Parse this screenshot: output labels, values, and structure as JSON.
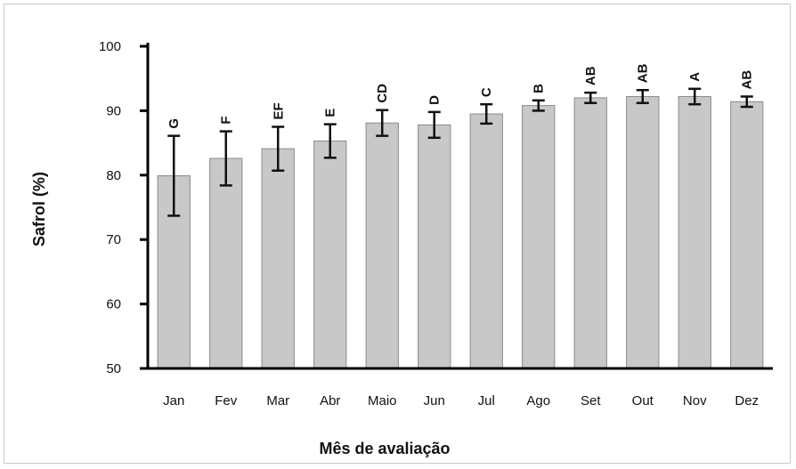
{
  "chart_data": {
    "type": "bar",
    "title": "",
    "xlabel": "Mês de avaliação",
    "ylabel": "Safrol (%)",
    "ylim": [
      50,
      100
    ],
    "yticks": [
      50,
      60,
      70,
      80,
      90,
      100
    ],
    "categories": [
      "Jan",
      "Fev",
      "Mar",
      "Abr",
      "Maio",
      "Jun",
      "Jul",
      "Ago",
      "Set",
      "Out",
      "Nov",
      "Dez"
    ],
    "values": [
      79.9,
      82.6,
      84.1,
      85.3,
      88.1,
      87.8,
      89.5,
      90.8,
      92.0,
      92.2,
      92.2,
      91.4
    ],
    "error": [
      6.2,
      4.2,
      3.4,
      2.6,
      2.0,
      2.0,
      1.5,
      0.8,
      0.8,
      1.0,
      1.2,
      0.8
    ],
    "significance_letters": [
      "G",
      "F",
      "EF",
      "E",
      "CD",
      "D",
      "C",
      "B",
      "AB",
      "AB",
      "A",
      "AB"
    ],
    "grid": false,
    "legend": "none",
    "bar_color": "#c8c8c8",
    "bar_edge_color": "#8a8a8a",
    "axis_color": "#000000"
  }
}
